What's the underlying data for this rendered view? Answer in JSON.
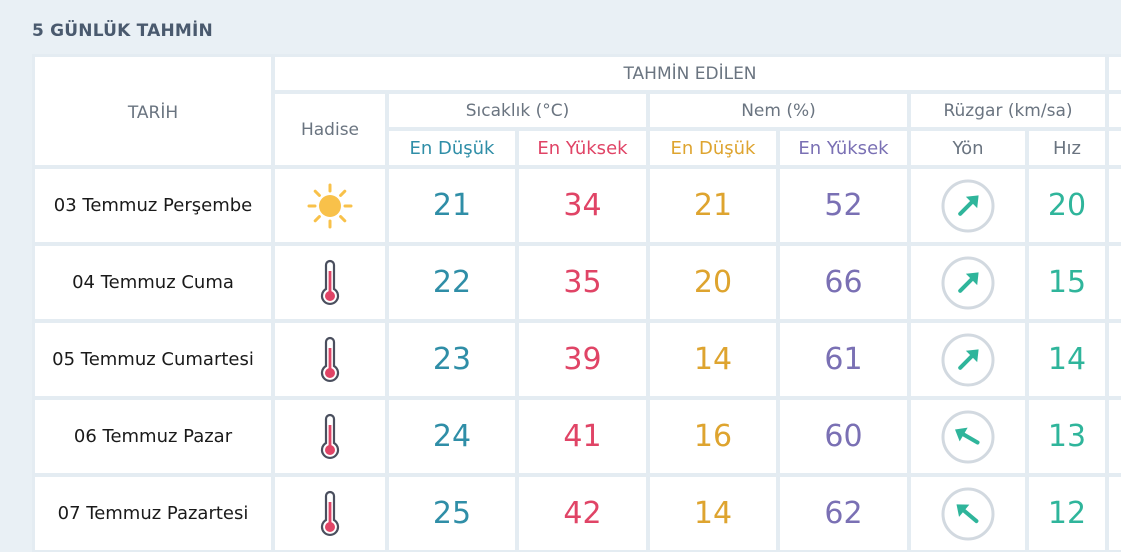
{
  "page": {
    "title": "5 GÜNLÜK TAHMİN"
  },
  "header": {
    "date_label": "TARİH",
    "forecast_label": "TAHMİN EDİLEN",
    "event_label": "Hadise",
    "temp_label": "Sıcaklık (°C)",
    "humidity_label": "Nem (%)",
    "wind_label": "Rüzgar (km/sa)",
    "temp_min": "En Düşük",
    "temp_max": "En Yüksek",
    "hum_min": "En Düşük",
    "hum_max": "En Yüksek",
    "wind_dir": "Yön",
    "wind_speed": "Hız"
  },
  "colors": {
    "temp_min": "#2f8ea7",
    "temp_max": "#e04466",
    "hum_min": "#dea42f",
    "hum_max": "#7a70b4",
    "wind": "#2fb59b"
  },
  "rows": [
    {
      "date": "03 Temmuz Perşembe",
      "icon": "sun-icon",
      "temp_min": "21",
      "temp_max": "34",
      "hum_min": "21",
      "hum_max": "52",
      "wind_dir_deg": 225,
      "wind_speed": "20"
    },
    {
      "date": "04 Temmuz Cuma",
      "icon": "thermometer-icon",
      "temp_min": "22",
      "temp_max": "35",
      "hum_min": "20",
      "hum_max": "66",
      "wind_dir_deg": 225,
      "wind_speed": "15"
    },
    {
      "date": "05 Temmuz Cumartesi",
      "icon": "thermometer-icon",
      "temp_min": "23",
      "temp_max": "39",
      "hum_min": "14",
      "hum_max": "61",
      "wind_dir_deg": 225,
      "wind_speed": "14"
    },
    {
      "date": "06 Temmuz Pazar",
      "icon": "thermometer-icon",
      "temp_min": "24",
      "temp_max": "41",
      "hum_min": "16",
      "hum_max": "60",
      "wind_dir_deg": 120,
      "wind_speed": "13"
    },
    {
      "date": "07 Temmuz Pazartesi",
      "icon": "thermometer-icon",
      "temp_min": "25",
      "temp_max": "42",
      "hum_min": "14",
      "hum_max": "62",
      "wind_dir_deg": 130,
      "wind_speed": "12"
    }
  ]
}
